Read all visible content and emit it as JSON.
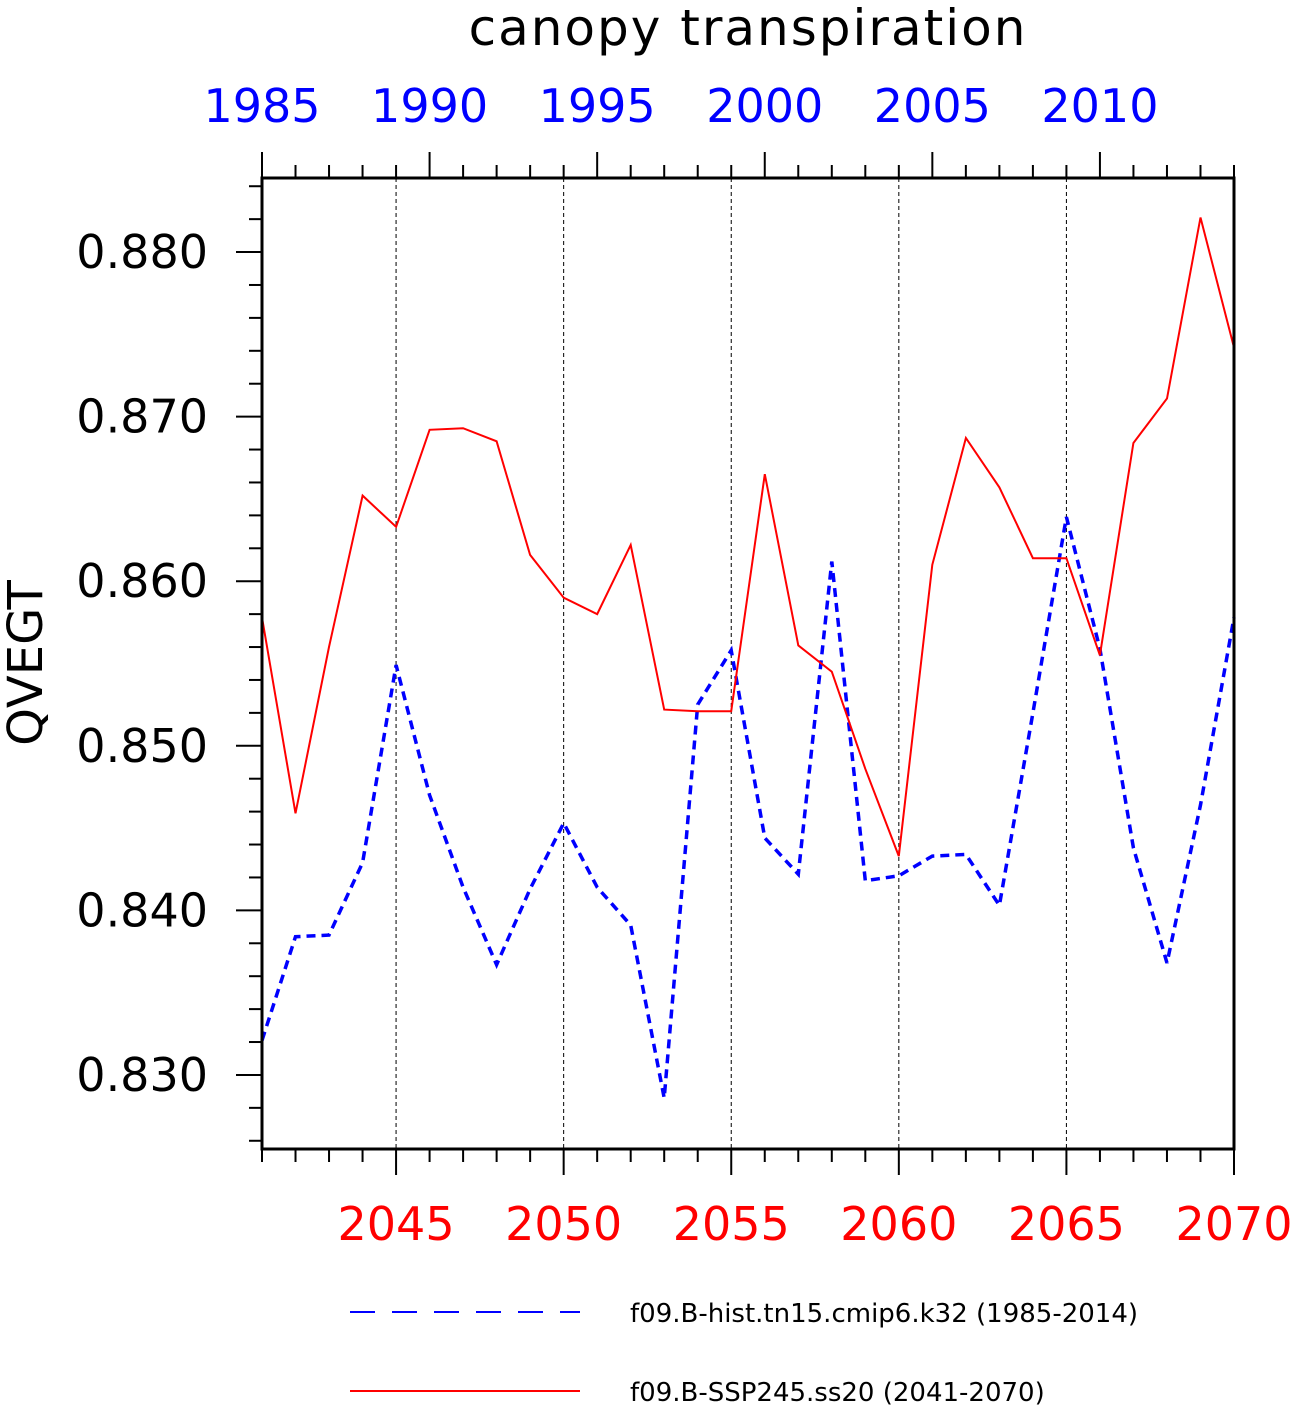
{
  "chart_data": {
    "type": "line",
    "title": "canopy transpiration",
    "ylabel": "QVEGT",
    "ylim": [
      0.8255,
      0.8845
    ],
    "y_ticks": [
      "0.830",
      "0.840",
      "0.850",
      "0.860",
      "0.870",
      "0.880"
    ],
    "y_tick_values": [
      0.83,
      0.84,
      0.85,
      0.86,
      0.87,
      0.88
    ],
    "bottom_axis": {
      "range": [
        2041,
        2070
      ],
      "color": "#ff0000",
      "ticks": [
        "2045",
        "2050",
        "2055",
        "2060",
        "2065",
        "2070"
      ],
      "tick_values": [
        2045,
        2050,
        2055,
        2060,
        2065,
        2070
      ]
    },
    "top_axis": {
      "range": [
        1985,
        2014
      ],
      "color": "#0000ff",
      "ticks": [
        "1985",
        "1990",
        "1995",
        "2000",
        "2005",
        "2010"
      ],
      "tick_values": [
        1985,
        1990,
        1995,
        2000,
        2005,
        2010
      ]
    },
    "grid": "vertical dashed at major ticks",
    "series": [
      {
        "name": "f09.B-hist.tn15.cmip6.k32 (1985-2014)",
        "axis": "top",
        "color": "#0000ff",
        "style": "dashed",
        "x": [
          1985,
          1986,
          1987,
          1988,
          1989,
          1990,
          1991,
          1992,
          1993,
          1994,
          1995,
          1996,
          1997,
          1998,
          1999,
          2000,
          2001,
          2002,
          2003,
          2004,
          2005,
          2006,
          2007,
          2008,
          2009,
          2010,
          2011,
          2012,
          2013,
          2014
        ],
        "values": [
          0.8321,
          0.8384,
          0.8385,
          0.8429,
          0.8549,
          0.847,
          0.8414,
          0.8367,
          0.8413,
          0.8453,
          0.8414,
          0.8391,
          0.8286,
          0.8525,
          0.8558,
          0.8444,
          0.8422,
          0.8612,
          0.8418,
          0.8421,
          0.8433,
          0.8434,
          0.8403,
          0.852,
          0.8639,
          0.8559,
          0.8438,
          0.8368,
          0.8464,
          0.8578
        ]
      },
      {
        "name": "f09.B-SSP245.ss20 (2041-2070)",
        "axis": "bottom",
        "color": "#ff0000",
        "style": "solid",
        "x": [
          2041,
          2042,
          2043,
          2044,
          2045,
          2046,
          2047,
          2048,
          2049,
          2050,
          2051,
          2052,
          2053,
          2054,
          2055,
          2056,
          2057,
          2058,
          2059,
          2060,
          2061,
          2062,
          2063,
          2064,
          2065,
          2066,
          2067,
          2068,
          2069,
          2070
        ],
        "values": [
          0.8578,
          0.8459,
          0.856,
          0.8652,
          0.8633,
          0.8692,
          0.8693,
          0.8685,
          0.8616,
          0.859,
          0.858,
          0.8622,
          0.8522,
          0.8521,
          0.8521,
          0.8665,
          0.8561,
          0.8545,
          0.8486,
          0.8433,
          0.861,
          0.8687,
          0.8657,
          0.8614,
          0.8614,
          0.8555,
          0.8684,
          0.8711,
          0.8821,
          0.8742
        ]
      }
    ],
    "legend": "bottom"
  }
}
